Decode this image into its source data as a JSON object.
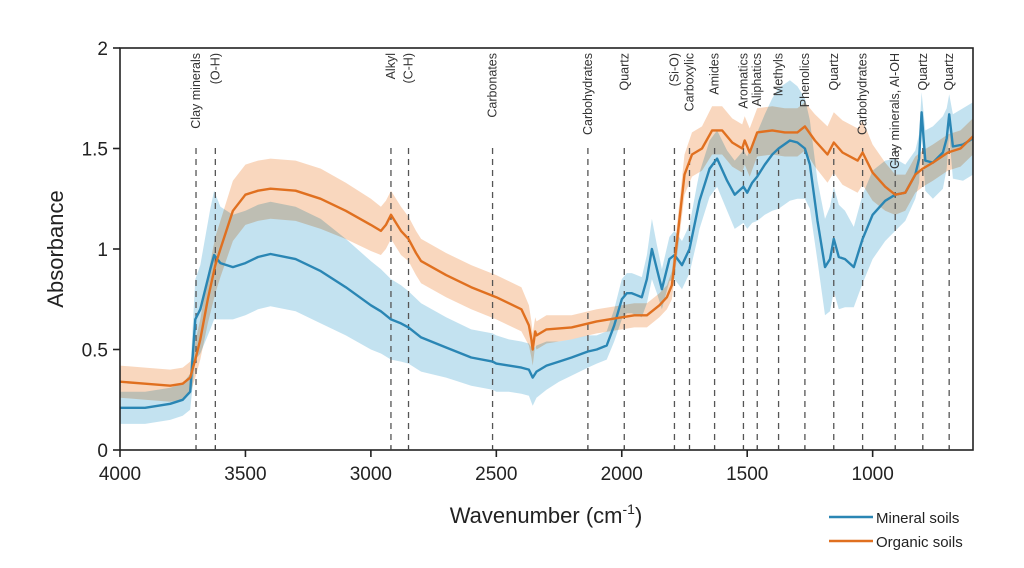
{
  "chart_data": {
    "type": "line",
    "title": "",
    "xlabel": "Wavenumber (cm",
    "xlabel_superscript": "-1",
    "xlabel_suffix": ")",
    "ylabel": "Absorbance",
    "xlim": [
      4000,
      600
    ],
    "x_reversed": true,
    "ylim": [
      0,
      2
    ],
    "grid": false,
    "x_ticks": [
      4000,
      3500,
      3000,
      2500,
      2000,
      1500,
      1000
    ],
    "x_tick_labels": [
      "4000",
      "3500",
      "3000",
      "2500",
      "2000",
      "1500",
      "1000"
    ],
    "y_ticks": [
      0,
      0.5,
      1,
      1.5,
      2
    ],
    "y_tick_labels": [
      "0",
      "0.5",
      "1",
      "1.5",
      "2"
    ],
    "legend": {
      "placement": "bottom-right, outside plot",
      "entries": [
        "Mineral soils",
        "Organic soils"
      ]
    },
    "series": [
      {
        "name": "Mineral soils",
        "color": "#2a86b4",
        "band_color": "#a9d5ea",
        "x": [
          4000,
          3900,
          3800,
          3750,
          3720,
          3700,
          3680,
          3660,
          3640,
          3625,
          3600,
          3550,
          3500,
          3450,
          3400,
          3300,
          3200,
          3100,
          3000,
          2960,
          2920,
          2880,
          2850,
          2800,
          2700,
          2600,
          2515,
          2500,
          2450,
          2400,
          2370,
          2355,
          2340,
          2300,
          2250,
          2200,
          2135,
          2100,
          2060,
          2030,
          2000,
          1980,
          1960,
          1920,
          1900,
          1880,
          1860,
          1840,
          1810,
          1790,
          1760,
          1730,
          1700,
          1690,
          1650,
          1620,
          1580,
          1550,
          1515,
          1500,
          1480,
          1460,
          1430,
          1400,
          1375,
          1330,
          1300,
          1270,
          1250,
          1220,
          1190,
          1170,
          1155,
          1135,
          1110,
          1075,
          1040,
          1000,
          950,
          910,
          870,
          830,
          815,
          805,
          790,
          760,
          720,
          705,
          695,
          680,
          640,
          600
        ],
        "y": [
          0.21,
          0.21,
          0.23,
          0.25,
          0.29,
          0.65,
          0.7,
          0.8,
          0.9,
          0.97,
          0.93,
          0.91,
          0.93,
          0.96,
          0.975,
          0.95,
          0.89,
          0.81,
          0.72,
          0.69,
          0.65,
          0.63,
          0.61,
          0.56,
          0.51,
          0.46,
          0.44,
          0.43,
          0.42,
          0.41,
          0.4,
          0.36,
          0.39,
          0.42,
          0.44,
          0.46,
          0.49,
          0.5,
          0.52,
          0.62,
          0.75,
          0.78,
          0.78,
          0.76,
          0.85,
          1.0,
          0.9,
          0.8,
          0.95,
          0.97,
          0.92,
          1.0,
          1.18,
          1.24,
          1.4,
          1.45,
          1.34,
          1.27,
          1.31,
          1.28,
          1.33,
          1.36,
          1.42,
          1.47,
          1.5,
          1.54,
          1.53,
          1.5,
          1.42,
          1.14,
          0.91,
          0.95,
          1.05,
          0.96,
          0.95,
          0.91,
          1.05,
          1.17,
          1.24,
          1.27,
          1.28,
          1.37,
          1.45,
          1.68,
          1.44,
          1.43,
          1.48,
          1.55,
          1.67,
          1.51,
          1.52,
          1.55
        ],
        "band_halfwidth": [
          0.08,
          0.08,
          0.08,
          0.08,
          0.09,
          0.2,
          0.22,
          0.26,
          0.3,
          0.32,
          0.28,
          0.26,
          0.26,
          0.26,
          0.26,
          0.26,
          0.26,
          0.24,
          0.22,
          0.21,
          0.2,
          0.19,
          0.18,
          0.17,
          0.15,
          0.14,
          0.14,
          0.14,
          0.13,
          0.13,
          0.13,
          0.14,
          0.13,
          0.12,
          0.1,
          0.09,
          0.08,
          0.07,
          0.07,
          0.08,
          0.1,
          0.1,
          0.1,
          0.1,
          0.12,
          0.15,
          0.12,
          0.1,
          0.11,
          0.12,
          0.12,
          0.12,
          0.14,
          0.14,
          0.14,
          0.14,
          0.15,
          0.17,
          0.18,
          0.18,
          0.2,
          0.22,
          0.25,
          0.28,
          0.3,
          0.3,
          0.28,
          0.25,
          0.22,
          0.2,
          0.24,
          0.26,
          0.26,
          0.26,
          0.24,
          0.2,
          0.22,
          0.22,
          0.2,
          0.18,
          0.14,
          0.12,
          0.12,
          0.1,
          0.15,
          0.18,
          0.18,
          0.15,
          0.1,
          0.16,
          0.18,
          0.18
        ]
      },
      {
        "name": "Organic soils",
        "color": "#e07020",
        "band_color": "#f7c6a3",
        "x": [
          4000,
          3900,
          3800,
          3750,
          3720,
          3700,
          3680,
          3650,
          3620,
          3600,
          3550,
          3500,
          3450,
          3400,
          3300,
          3200,
          3100,
          3000,
          2960,
          2940,
          2920,
          2900,
          2880,
          2850,
          2820,
          2800,
          2700,
          2600,
          2500,
          2400,
          2370,
          2360,
          2355,
          2345,
          2340,
          2300,
          2200,
          2100,
          2000,
          1950,
          1900,
          1850,
          1820,
          1800,
          1780,
          1750,
          1720,
          1680,
          1640,
          1600,
          1560,
          1520,
          1510,
          1490,
          1460,
          1400,
          1350,
          1300,
          1270,
          1230,
          1180,
          1155,
          1120,
          1060,
          1040,
          1000,
          950,
          910,
          870,
          830,
          800,
          760,
          700,
          650,
          600
        ],
        "y": [
          0.34,
          0.33,
          0.32,
          0.33,
          0.36,
          0.45,
          0.55,
          0.75,
          0.92,
          1.0,
          1.19,
          1.27,
          1.29,
          1.3,
          1.29,
          1.25,
          1.19,
          1.12,
          1.09,
          1.12,
          1.17,
          1.13,
          1.09,
          1.05,
          0.98,
          0.94,
          0.87,
          0.81,
          0.76,
          0.7,
          0.62,
          0.55,
          0.5,
          0.59,
          0.57,
          0.6,
          0.61,
          0.64,
          0.66,
          0.67,
          0.67,
          0.72,
          0.76,
          0.82,
          1.04,
          1.37,
          1.47,
          1.5,
          1.59,
          1.59,
          1.53,
          1.5,
          1.54,
          1.48,
          1.58,
          1.59,
          1.58,
          1.58,
          1.61,
          1.54,
          1.47,
          1.53,
          1.48,
          1.44,
          1.48,
          1.38,
          1.31,
          1.27,
          1.28,
          1.37,
          1.4,
          1.43,
          1.48,
          1.5,
          1.56
        ],
        "band_halfwidth": [
          0.08,
          0.08,
          0.08,
          0.08,
          0.08,
          0.09,
          0.1,
          0.12,
          0.14,
          0.14,
          0.15,
          0.15,
          0.15,
          0.15,
          0.15,
          0.15,
          0.14,
          0.13,
          0.12,
          0.12,
          0.12,
          0.12,
          0.12,
          0.11,
          0.11,
          0.11,
          0.11,
          0.11,
          0.11,
          0.11,
          0.1,
          0.09,
          0.08,
          0.07,
          0.07,
          0.07,
          0.06,
          0.06,
          0.06,
          0.06,
          0.06,
          0.06,
          0.06,
          0.07,
          0.08,
          0.1,
          0.11,
          0.11,
          0.12,
          0.12,
          0.12,
          0.12,
          0.12,
          0.12,
          0.12,
          0.12,
          0.12,
          0.12,
          0.12,
          0.13,
          0.14,
          0.15,
          0.16,
          0.16,
          0.16,
          0.14,
          0.12,
          0.1,
          0.09,
          0.09,
          0.09,
          0.09,
          0.09,
          0.09,
          0.09
        ]
      }
    ],
    "annotations": [
      {
        "x": 3697,
        "label": "Clay minerals"
      },
      {
        "x": 3620,
        "label": "(O-H)"
      },
      {
        "x": 2920,
        "label": "Alkyl"
      },
      {
        "x": 2850,
        "label": "(C-H)"
      },
      {
        "x": 2515,
        "label": "Carbonates"
      },
      {
        "x": 2135,
        "label": "Carbohydrates"
      },
      {
        "x": 1990,
        "label": "Quartz"
      },
      {
        "x": 1790,
        "label": "(Si-O)"
      },
      {
        "x": 1730,
        "label": "Carboxylic"
      },
      {
        "x": 1630,
        "label": "Amides"
      },
      {
        "x": 1515,
        "label": "Aromatics"
      },
      {
        "x": 1460,
        "label": "Aliphatics"
      },
      {
        "x": 1375,
        "label": "Methyls"
      },
      {
        "x": 1270,
        "label": "Phenolics"
      },
      {
        "x": 1155,
        "label": "Quartz"
      },
      {
        "x": 1040,
        "label": "Carbohydrates"
      },
      {
        "x": 910,
        "label": "Clay minerals, Al-OH"
      },
      {
        "x": 800,
        "label": "Quartz"
      },
      {
        "x": 695,
        "label": "Quartz"
      }
    ]
  }
}
